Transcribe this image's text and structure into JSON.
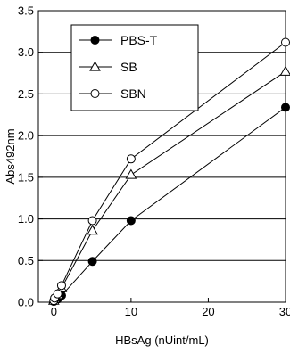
{
  "chart_data": {
    "type": "line",
    "xlabel": "HBsAg (nUint/mL)",
    "ylabel": "Abs492nm",
    "xlim": [
      -2,
      30
    ],
    "ylim": [
      0,
      3.5
    ],
    "x_ticks": [
      0,
      10,
      20,
      30
    ],
    "x_tick_labels": [
      "0",
      "10",
      "20",
      "30"
    ],
    "y_ticks": [
      0,
      0.5,
      1.0,
      1.5,
      2.0,
      2.5,
      3.0,
      3.5
    ],
    "y_tick_labels": [
      "0.0",
      "0.5",
      "1.0",
      "1.5",
      "2.0",
      "2.5",
      "3.0",
      "3.5"
    ],
    "grid": "horizontal",
    "legend_position": "top-left",
    "series": [
      {
        "name": "PBS-T",
        "marker": "filled-circle",
        "x": [
          0,
          0.1,
          0.5,
          1,
          5,
          10,
          30
        ],
        "y": [
          0.01,
          0.02,
          0.04,
          0.08,
          0.49,
          0.98,
          2.34
        ]
      },
      {
        "name": "SB",
        "marker": "open-triangle",
        "x": [
          0,
          0.1,
          0.5,
          1,
          5,
          10,
          30
        ],
        "y": [
          0.02,
          0.04,
          0.09,
          0.17,
          0.86,
          1.53,
          2.77
        ]
      },
      {
        "name": "SBN",
        "marker": "open-circle",
        "x": [
          0,
          0.1,
          0.5,
          1,
          5,
          10,
          30
        ],
        "y": [
          0.02,
          0.05,
          0.1,
          0.2,
          0.98,
          1.72,
          3.12
        ]
      }
    ]
  }
}
